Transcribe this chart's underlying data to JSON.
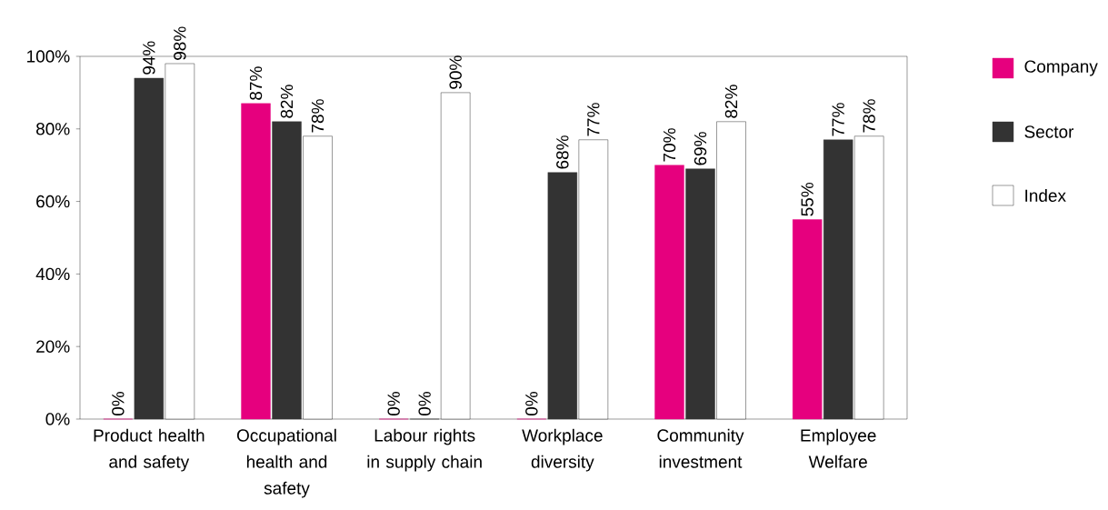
{
  "chart_data": {
    "type": "bar",
    "categories": [
      "Product health and safety",
      "Occupational health and safety",
      "Labour rights in supply chain",
      "Workplace diversity",
      "Community investment",
      "Employee Welfare"
    ],
    "series": [
      {
        "name": "Company",
        "color": "#e6007e",
        "values": [
          0,
          87,
          0,
          0,
          70,
          55
        ],
        "value_labels": [
          "0%",
          "87%",
          "0%",
          "0%",
          "70%",
          "55%"
        ]
      },
      {
        "name": "Sector",
        "color": "#333333",
        "values": [
          94,
          82,
          0,
          68,
          69,
          77
        ],
        "value_labels": [
          "94%",
          "82%",
          "0%",
          "68%",
          "69%",
          "77%"
        ]
      },
      {
        "name": "Index",
        "color": "#ffffff",
        "values": [
          98,
          78,
          90,
          77,
          82,
          78
        ],
        "value_labels": [
          "98%",
          "78%",
          "90%",
          "77%",
          "82%",
          "78%"
        ]
      }
    ],
    "ylim": [
      0,
      100
    ],
    "yticks": [
      {
        "value": 0,
        "label": "0%"
      },
      {
        "value": 20,
        "label": "20%"
      },
      {
        "value": 40,
        "label": "40%"
      },
      {
        "value": 60,
        "label": "60%"
      },
      {
        "value": 80,
        "label": "80%"
      },
      {
        "value": 100,
        "label": "100%"
      }
    ],
    "legend": "right",
    "grid": false
  }
}
